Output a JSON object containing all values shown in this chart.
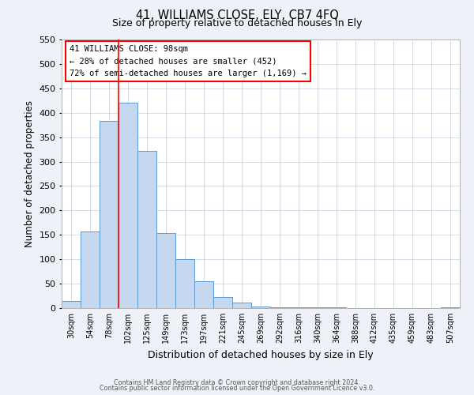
{
  "title": "41, WILLIAMS CLOSE, ELY, CB7 4FQ",
  "subtitle": "Size of property relative to detached houses in Ely",
  "xlabel": "Distribution of detached houses by size in Ely",
  "ylabel": "Number of detached properties",
  "bar_labels": [
    "30sqm",
    "54sqm",
    "78sqm",
    "102sqm",
    "125sqm",
    "149sqm",
    "173sqm",
    "197sqm",
    "221sqm",
    "245sqm",
    "269sqm",
    "292sqm",
    "316sqm",
    "340sqm",
    "364sqm",
    "388sqm",
    "412sqm",
    "435sqm",
    "459sqm",
    "483sqm",
    "507sqm"
  ],
  "bar_values": [
    15,
    157,
    383,
    420,
    322,
    153,
    100,
    55,
    22,
    12,
    3,
    2,
    1,
    1,
    1,
    0,
    0,
    0,
    0,
    0,
    2
  ],
  "bar_color": "#c5d8f0",
  "bar_edge_color": "#5b9bd5",
  "ylim": [
    0,
    550
  ],
  "yticks": [
    0,
    50,
    100,
    150,
    200,
    250,
    300,
    350,
    400,
    450,
    500,
    550
  ],
  "vline_x": 3.0,
  "vline_color": "red",
  "annotation_box_text": "41 WILLIAMS CLOSE: 98sqm\n← 28% of detached houses are smaller (452)\n72% of semi-detached houses are larger (1,169) →",
  "footer_line1": "Contains HM Land Registry data © Crown copyright and database right 2024.",
  "footer_line2": "Contains public sector information licensed under the Open Government Licence v3.0.",
  "background_color": "#eef2f8",
  "plot_bg_color": "#ffffff"
}
